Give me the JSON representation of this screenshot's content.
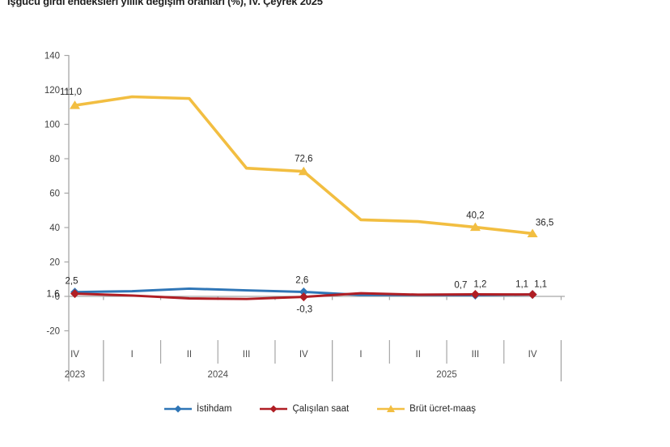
{
  "title": "İşgücü girdi endeksleri yıllık değişim oranları (%), IV. Çeyrek 2025",
  "colors": {
    "istihdam": "#2E75B6",
    "calisilan_saat": "#B01E24",
    "brut_ucret_maas": "#F2BE41",
    "axis": "#A6A6A6",
    "tick_text": "#404040",
    "label_text": "#262626"
  },
  "chart_data": {
    "type": "line",
    "title": "İşgücü girdi endeksleri yıllık değişim oranları (%), IV. Çeyrek 2025",
    "xlabel": "",
    "ylabel": "",
    "ylim": [
      -20,
      140
    ],
    "ytick_step": 20,
    "grid": false,
    "legend_position": "bottom",
    "x_quarters": [
      "IV",
      "I",
      "II",
      "III",
      "IV",
      "I",
      "II",
      "III",
      "IV"
    ],
    "year_groups": [
      {
        "label": "2023",
        "quarters": 1
      },
      {
        "label": "2024",
        "quarters": 4
      },
      {
        "label": "2025",
        "quarters": 4
      }
    ],
    "series": [
      {
        "name": "İstihdam",
        "color": "#2E75B6",
        "marker": "diamond",
        "values": [
          2.5,
          3.0,
          4.5,
          3.5,
          2.6,
          0.8,
          0.8,
          0.7,
          1.1
        ],
        "point_labels": [
          {
            "i": 0,
            "text": "2,5"
          },
          {
            "i": 4,
            "text": "2,6"
          },
          {
            "i": 7,
            "text": "0,7"
          },
          {
            "i": 8,
            "text": "1,1"
          }
        ]
      },
      {
        "name": "Çalışılan saat",
        "color": "#B01E24",
        "marker": "diamond",
        "values": [
          1.6,
          0.5,
          -1.2,
          -1.5,
          -0.3,
          1.8,
          1.0,
          1.2,
          1.1
        ],
        "point_labels": [
          {
            "i": 0,
            "text": "1,6"
          },
          {
            "i": 4,
            "text": "-0,3"
          },
          {
            "i": 7,
            "text": "1,2"
          },
          {
            "i": 8,
            "text": "1,1"
          }
        ]
      },
      {
        "name": "Brüt ücret-maaş",
        "color": "#F2BE41",
        "marker": "triangle",
        "values": [
          111.0,
          116.0,
          115.0,
          74.5,
          72.6,
          44.5,
          43.5,
          40.2,
          36.5
        ],
        "point_labels": [
          {
            "i": 0,
            "text": "111,0"
          },
          {
            "i": 4,
            "text": "72,6"
          },
          {
            "i": 7,
            "text": "40,2"
          },
          {
            "i": 8,
            "text": "36,5"
          }
        ]
      }
    ]
  },
  "legend": {
    "items": [
      {
        "label": "İstihdam"
      },
      {
        "label": "Çalışılan saat"
      },
      {
        "label": "Brüt ücret-maaş"
      }
    ]
  }
}
